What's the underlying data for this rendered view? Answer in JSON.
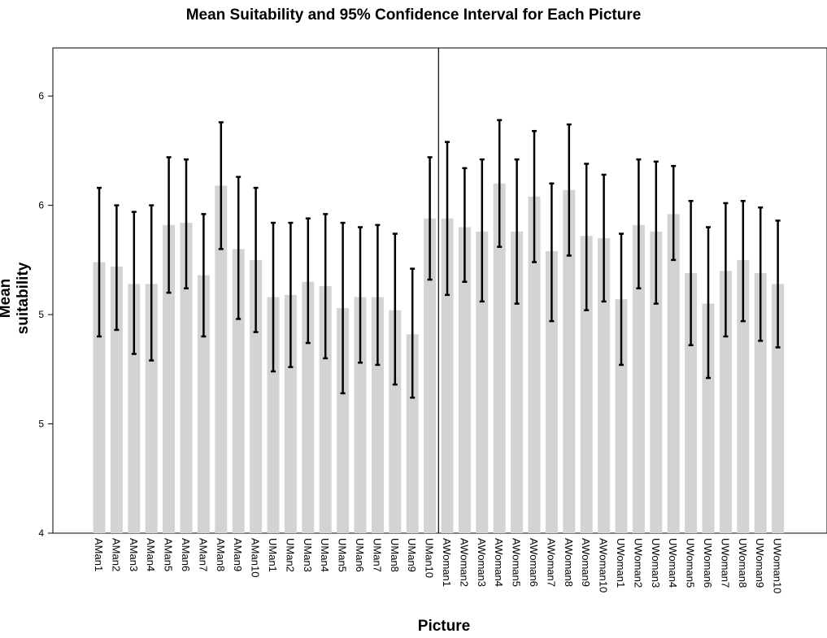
{
  "chart_data": {
    "type": "bar",
    "title": "Mean Suitability and 95% Confidence Interval for Each Picture",
    "xlabel": "Picture",
    "ylabel": "Mean suitability",
    "y_ticks": [
      {
        "value": 4.0,
        "label": "4"
      },
      {
        "value": 4.5,
        "label": "5"
      },
      {
        "value": 5.0,
        "label": "5"
      },
      {
        "value": 5.5,
        "label": "6"
      },
      {
        "value": 6.0,
        "label": "6"
      }
    ],
    "ylim": [
      4.0,
      6.22
    ],
    "grid": false,
    "legend": "none",
    "bar_color": "#d3d3d3",
    "error_bar_color": "#000000",
    "divider_after_category": "UMan10",
    "categories": [
      "AMan1",
      "AMan2",
      "AMan3",
      "AMan4",
      "AMan5",
      "AMan6",
      "AMan7",
      "AMan8",
      "AMan9",
      "AMan10",
      "UMan1",
      "UMan2",
      "UMan3",
      "UMan4",
      "UMan5",
      "UMan6",
      "UMan7",
      "UMan8",
      "UMan9",
      "UMan10",
      "AWoman1",
      "AWoman2",
      "AWoman3",
      "AWoman4",
      "AWoman5",
      "AWoman6",
      "AWoman7",
      "AWoman8",
      "AWoman9",
      "AWoman10",
      "UWoman1",
      "UWoman2",
      "UWoman3",
      "UWoman4",
      "UWoman5",
      "UWoman6",
      "UWoman7",
      "UWoman8",
      "UWoman9",
      "UWoman10"
    ],
    "values": [
      5.24,
      5.22,
      5.14,
      5.14,
      5.41,
      5.42,
      5.18,
      5.59,
      5.3,
      5.25,
      5.08,
      5.09,
      5.15,
      5.13,
      5.03,
      5.08,
      5.08,
      5.02,
      4.91,
      5.44,
      5.44,
      5.4,
      5.38,
      5.6,
      5.38,
      5.54,
      5.29,
      5.57,
      5.36,
      5.35,
      5.07,
      5.41,
      5.38,
      5.46,
      5.19,
      5.05,
      5.2,
      5.25,
      5.19,
      5.14
    ],
    "ci_lower": [
      4.9,
      4.93,
      4.82,
      4.79,
      5.1,
      5.12,
      4.9,
      5.3,
      4.98,
      4.92,
      4.74,
      4.76,
      4.87,
      4.8,
      4.64,
      4.78,
      4.77,
      4.68,
      4.62,
      5.16,
      5.09,
      5.15,
      5.06,
      5.31,
      5.05,
      5.24,
      4.97,
      5.27,
      5.02,
      5.06,
      4.77,
      5.12,
      5.05,
      5.25,
      4.86,
      4.71,
      4.9,
      4.97,
      4.88,
      4.85
    ],
    "ci_upper": [
      5.58,
      5.5,
      5.47,
      5.5,
      5.72,
      5.71,
      5.46,
      5.88,
      5.63,
      5.58,
      5.42,
      5.42,
      5.44,
      5.46,
      5.42,
      5.4,
      5.41,
      5.37,
      5.21,
      5.72,
      5.79,
      5.67,
      5.71,
      5.89,
      5.71,
      5.84,
      5.6,
      5.87,
      5.69,
      5.64,
      5.37,
      5.71,
      5.7,
      5.68,
      5.52,
      5.4,
      5.51,
      5.52,
      5.49,
      5.43
    ]
  }
}
